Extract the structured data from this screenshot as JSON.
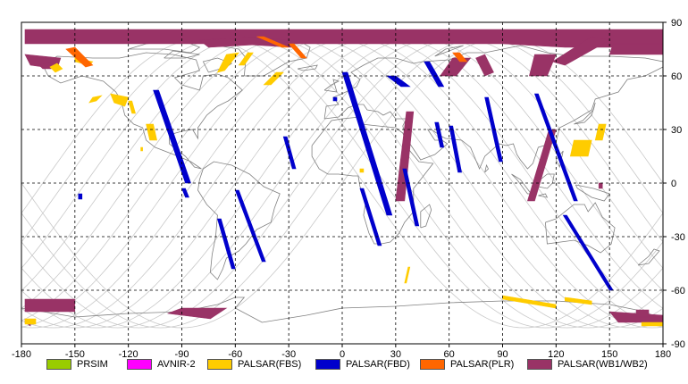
{
  "map": {
    "x_ticks": [
      "-180",
      "-150",
      "-120",
      "-90",
      "-60",
      "-30",
      "0",
      "30",
      "60",
      "90",
      "120",
      "150",
      "180"
    ],
    "y_ticks_right": [
      "90",
      "60",
      "30",
      "0",
      "-30",
      "-60",
      "-90"
    ],
    "lon_range": [
      -180,
      180
    ],
    "lat_range": [
      -90,
      90
    ],
    "grid": "dashed, every 30 degrees",
    "colors": {
      "coastline": "#808080",
      "orbit_track": "#c8c8c8",
      "grid": "#000000"
    }
  },
  "legend": {
    "items": [
      {
        "label": "PRSIM",
        "color": "#99cc00"
      },
      {
        "label": "AVNIR-2",
        "color": "#ff00ff"
      },
      {
        "label": "PALSAR(FBS)",
        "color": "#ffcc00"
      },
      {
        "label": "PALSAR(FBD)",
        "color": "#0000cc"
      },
      {
        "label": "PALSAR(PLR)",
        "color": "#ff6600"
      },
      {
        "label": "PALSAR(WB1/WB2)",
        "color": "#993366"
      }
    ]
  },
  "chart_data": {
    "type": "map",
    "swaths_wb": [
      [
        [
          -178,
          86
        ],
        [
          -178,
          78
        ],
        [
          90,
          78
        ],
        [
          125,
          76
        ],
        [
          180,
          76
        ],
        [
          180,
          86
        ]
      ],
      [
        [
          -178,
          72
        ],
        [
          -175,
          66
        ],
        [
          -160,
          64
        ],
        [
          -158,
          70
        ]
      ],
      [
        [
          -170,
          66
        ],
        [
          -168,
          64
        ],
        [
          -162,
          64
        ],
        [
          -164,
          68
        ]
      ],
      [
        [
          -55,
          82
        ],
        [
          -30,
          80
        ],
        [
          -28,
          76
        ],
        [
          -60,
          78
        ]
      ],
      [
        [
          -80,
          80
        ],
        [
          -45,
          82
        ],
        [
          -40,
          78
        ],
        [
          -75,
          76
        ]
      ],
      [
        [
          62,
          70
        ],
        [
          72,
          70
        ],
        [
          64,
          60
        ],
        [
          55,
          60
        ]
      ],
      [
        [
          75,
          70
        ],
        [
          80,
          72
        ],
        [
          85,
          62
        ],
        [
          80,
          60
        ]
      ],
      [
        [
          125,
          66
        ],
        [
          150,
          80
        ],
        [
          140,
          82
        ],
        [
          118,
          68
        ]
      ],
      [
        [
          152,
          78
        ],
        [
          180,
          78
        ],
        [
          180,
          72
        ],
        [
          150,
          72
        ]
      ],
      [
        [
          108,
          72
        ],
        [
          120,
          72
        ],
        [
          115,
          60
        ],
        [
          105,
          60
        ]
      ],
      [
        [
          40,
          40
        ],
        [
          36,
          40
        ],
        [
          30,
          -10
        ],
        [
          35,
          -10
        ]
      ],
      [
        [
          116,
          30
        ],
        [
          120,
          30
        ],
        [
          108,
          -10
        ],
        [
          104,
          -10
        ]
      ],
      [
        [
          144,
          0
        ],
        [
          146,
          0
        ],
        [
          146,
          -3
        ],
        [
          144,
          -3
        ]
      ],
      [
        [
          -178,
          -65
        ],
        [
          -150,
          -65
        ],
        [
          -150,
          -72
        ],
        [
          -178,
          -72
        ]
      ],
      [
        [
          -178,
          -76
        ],
        [
          -175,
          -78
        ],
        [
          -175,
          -80
        ],
        [
          -178,
          -78
        ]
      ],
      [
        [
          -98,
          -73
        ],
        [
          -74,
          -76
        ],
        [
          -65,
          -70
        ],
        [
          -90,
          -70
        ]
      ],
      [
        [
          150,
          -72
        ],
        [
          180,
          -74
        ],
        [
          180,
          -78
        ],
        [
          155,
          -78
        ]
      ],
      [
        [
          165,
          -71
        ],
        [
          172,
          -71
        ],
        [
          172,
          -75
        ],
        [
          165,
          -75
        ]
      ]
    ],
    "swaths_fbs": [
      [
        [
          -164,
          65
        ],
        [
          -160,
          67
        ],
        [
          -157,
          64
        ],
        [
          -161,
          62
        ]
      ],
      [
        [
          -140,
          48
        ],
        [
          -135,
          49
        ],
        [
          -138,
          46
        ],
        [
          -142,
          45
        ]
      ],
      [
        [
          -130,
          50
        ],
        [
          -120,
          48
        ],
        [
          -122,
          43
        ],
        [
          -128,
          45
        ]
      ],
      [
        [
          -150,
          70
        ],
        [
          -140,
          68
        ],
        [
          -142,
          66
        ],
        [
          -150,
          68
        ]
      ],
      [
        [
          -65,
          72
        ],
        [
          -58,
          73
        ],
        [
          -66,
          63
        ],
        [
          -70,
          62
        ]
      ],
      [
        [
          -53,
          73
        ],
        [
          -50,
          73
        ],
        [
          -55,
          66
        ],
        [
          -58,
          66
        ]
      ],
      [
        [
          -120,
          46
        ],
        [
          -118,
          46
        ],
        [
          -116,
          39
        ],
        [
          -118,
          39
        ]
      ],
      [
        [
          -110,
          33
        ],
        [
          -106,
          33
        ],
        [
          -104,
          24
        ],
        [
          -108,
          24
        ]
      ],
      [
        [
          -113,
          20
        ],
        [
          -112,
          20
        ],
        [
          -112,
          18
        ],
        [
          -113,
          18
        ]
      ],
      [
        [
          -37,
          62
        ],
        [
          -33,
          62
        ],
        [
          -40,
          55
        ],
        [
          -44,
          55
        ]
      ],
      [
        [
          10,
          8
        ],
        [
          12,
          8
        ],
        [
          12,
          6
        ],
        [
          10,
          6
        ]
      ],
      [
        [
          37,
          -47
        ],
        [
          38,
          -47
        ],
        [
          36,
          -56
        ],
        [
          35,
          -56
        ]
      ],
      [
        [
          130,
          24
        ],
        [
          140,
          24
        ],
        [
          138,
          15
        ],
        [
          128,
          15
        ]
      ],
      [
        [
          144,
          33
        ],
        [
          148,
          33
        ],
        [
          146,
          24
        ],
        [
          142,
          24
        ]
      ],
      [
        [
          90,
          -63
        ],
        [
          120,
          -68
        ],
        [
          120,
          -70
        ],
        [
          90,
          -65
        ]
      ],
      [
        [
          125,
          -64
        ],
        [
          140,
          -66
        ],
        [
          140,
          -68
        ],
        [
          125,
          -66
        ]
      ],
      [
        [
          -178,
          -76
        ],
        [
          -172,
          -76
        ],
        [
          -172,
          -79
        ],
        [
          -178,
          -79
        ]
      ],
      [
        [
          168,
          -78
        ],
        [
          180,
          -78
        ],
        [
          180,
          -80
        ],
        [
          168,
          -80
        ]
      ]
    ],
    "swaths_fbd": [
      [
        [
          -5,
          48
        ],
        [
          -3,
          48
        ],
        [
          -3,
          46
        ],
        [
          -5,
          46
        ]
      ],
      [
        [
          -148,
          -6
        ],
        [
          -146,
          -6
        ],
        [
          -146,
          -9
        ],
        [
          -148,
          -9
        ]
      ],
      [
        [
          -106,
          52
        ],
        [
          -103,
          52
        ],
        [
          -85,
          0
        ],
        [
          -88,
          0
        ]
      ],
      [
        [
          -90,
          -3
        ],
        [
          -88,
          -3
        ],
        [
          -86,
          -8
        ],
        [
          -88,
          -8
        ]
      ],
      [
        [
          -60,
          -4
        ],
        [
          -58,
          -4
        ],
        [
          -43,
          -44
        ],
        [
          -45,
          -44
        ]
      ],
      [
        [
          -70,
          -20
        ],
        [
          -68,
          -20
        ],
        [
          -60,
          -48
        ],
        [
          -62,
          -48
        ]
      ],
      [
        [
          -33,
          26
        ],
        [
          -31,
          26
        ],
        [
          -26,
          8
        ],
        [
          -28,
          8
        ]
      ],
      [
        [
          0,
          62
        ],
        [
          3,
          62
        ],
        [
          28,
          -18
        ],
        [
          25,
          -18
        ]
      ],
      [
        [
          10,
          -3
        ],
        [
          12,
          -3
        ],
        [
          22,
          -35
        ],
        [
          20,
          -35
        ]
      ],
      [
        [
          34,
          8
        ],
        [
          36,
          8
        ],
        [
          43,
          -24
        ],
        [
          41,
          -24
        ]
      ],
      [
        [
          46,
          68
        ],
        [
          49,
          68
        ],
        [
          57,
          54
        ],
        [
          54,
          54
        ]
      ],
      [
        [
          52,
          34
        ],
        [
          54,
          34
        ],
        [
          57,
          20
        ],
        [
          55,
          20
        ]
      ],
      [
        [
          60,
          32
        ],
        [
          62,
          32
        ],
        [
          67,
          6
        ],
        [
          65,
          6
        ]
      ],
      [
        [
          80,
          48
        ],
        [
          82,
          48
        ],
        [
          90,
          12
        ],
        [
          88,
          12
        ]
      ],
      [
        [
          108,
          50
        ],
        [
          110,
          50
        ],
        [
          132,
          -10
        ],
        [
          130,
          -10
        ]
      ],
      [
        [
          124,
          -18
        ],
        [
          126,
          -18
        ],
        [
          152,
          -60
        ],
        [
          150,
          -60
        ]
      ],
      [
        [
          25,
          60
        ],
        [
          30,
          60
        ],
        [
          38,
          54
        ],
        [
          33,
          54
        ]
      ]
    ],
    "swaths_plr": [
      [
        [
          -155,
          75
        ],
        [
          -150,
          76
        ],
        [
          -140,
          66
        ],
        [
          -144,
          65
        ]
      ],
      [
        [
          -48,
          82
        ],
        [
          -44,
          82
        ],
        [
          -30,
          76
        ],
        [
          -34,
          76
        ]
      ],
      [
        [
          -30,
          78
        ],
        [
          -27,
          78
        ],
        [
          -20,
          70
        ],
        [
          -23,
          70
        ]
      ],
      [
        [
          62,
          73
        ],
        [
          66,
          73
        ],
        [
          70,
          68
        ],
        [
          66,
          68
        ]
      ]
    ],
    "orbit_phase_offsets_deg": [
      0,
      24,
      48,
      72,
      96,
      120,
      144,
      168,
      192,
      216,
      240,
      264,
      288,
      312,
      336
    ]
  }
}
